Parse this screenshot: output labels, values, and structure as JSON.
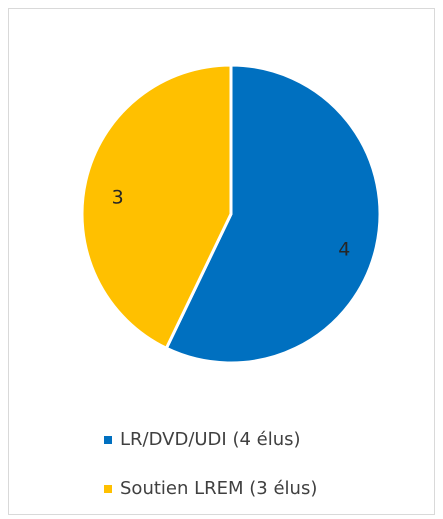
{
  "chart_data": {
    "type": "pie",
    "categories": [
      "LR/DVD/UDI (4 élus)",
      "Soutien LREM (3 élus)"
    ],
    "values": [
      4,
      3
    ],
    "colors": [
      "#0070c0",
      "#ffc000"
    ],
    "legend": "bottom"
  }
}
